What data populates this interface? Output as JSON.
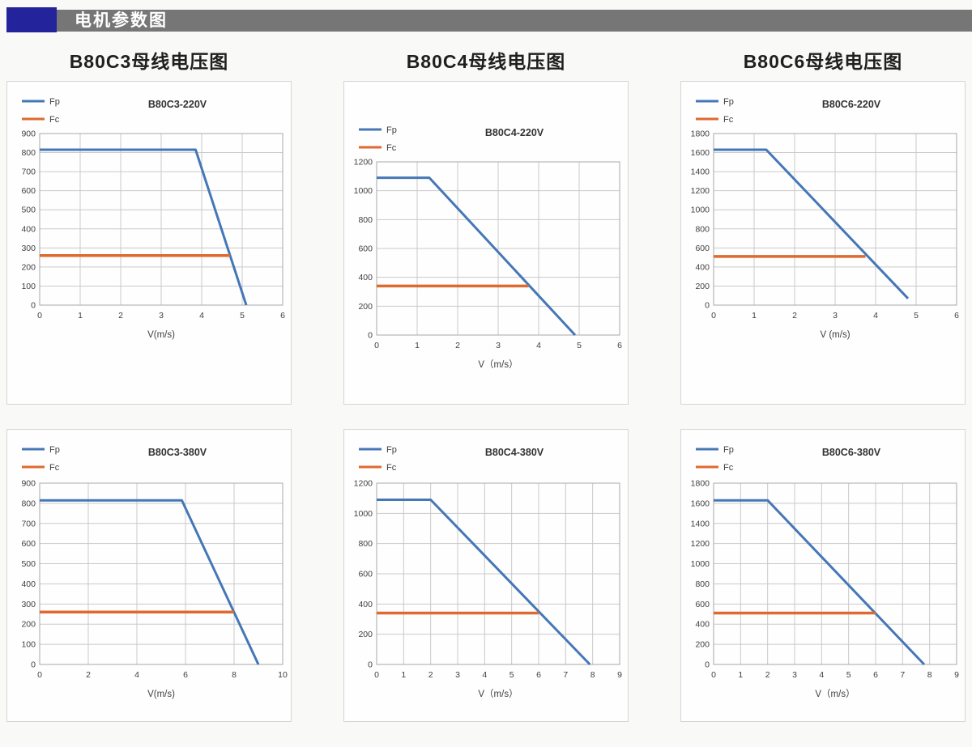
{
  "header": {
    "title": "电机参数图",
    "accent_color": "#23239b",
    "bar_color": "#767676",
    "text_color": "#ffffff"
  },
  "section_titles": [
    "B80C3母线电压图",
    "B80C4母线电压图",
    "B80C6母线电压图"
  ],
  "colors": {
    "fp": "#4577b7",
    "fc": "#dd6a2f",
    "grid": "#c9c9c9",
    "plot_border": "#a8a8a8",
    "tick_text": "#404040",
    "title_text": "#333333",
    "panel_border": "#d6d6d3",
    "panel_bg": "#fefefe",
    "page_bg": "#f9f9f7"
  },
  "chart_data": [
    {
      "type": "line",
      "title": "B80C3-220V",
      "xlabel": "V(m/s)",
      "xlim": [
        0,
        6
      ],
      "xticks": [
        0,
        1,
        2,
        3,
        4,
        5,
        6
      ],
      "ylim": [
        0,
        900
      ],
      "yticks": [
        0,
        100,
        200,
        300,
        400,
        500,
        600,
        700,
        800,
        900
      ],
      "grid": true,
      "legend_position": "top-left",
      "series": [
        {
          "name": "Fp",
          "color": "#4577b7",
          "points": [
            [
              0,
              815
            ],
            [
              3.85,
              815
            ],
            [
              5.1,
              0
            ]
          ]
        },
        {
          "name": "Fc",
          "color": "#dd6a2f",
          "points": [
            [
              0,
              260
            ],
            [
              4.7,
              260
            ]
          ]
        }
      ]
    },
    {
      "type": "line",
      "title": "B80C4-220V",
      "xlabel": "V（m/s）",
      "xlim": [
        0,
        6
      ],
      "xticks": [
        0,
        1,
        2,
        3,
        4,
        5,
        6
      ],
      "ylim": [
        0,
        1200
      ],
      "yticks": [
        0,
        200,
        400,
        600,
        800,
        1000,
        1200
      ],
      "grid": true,
      "legend_position": "top-left",
      "series": [
        {
          "name": "Fp",
          "color": "#4577b7",
          "points": [
            [
              0,
              1090
            ],
            [
              1.3,
              1090
            ],
            [
              4.9,
              0
            ]
          ]
        },
        {
          "name": "Fc",
          "color": "#dd6a2f",
          "points": [
            [
              0,
              340
            ],
            [
              3.75,
              340
            ]
          ]
        }
      ]
    },
    {
      "type": "line",
      "title": "B80C6-220V",
      "xlabel": "V (m/s)",
      "xlim": [
        0,
        6
      ],
      "xticks": [
        0,
        1,
        2,
        3,
        4,
        5,
        6
      ],
      "ylim": [
        0,
        1800
      ],
      "yticks": [
        0,
        200,
        400,
        600,
        800,
        1000,
        1200,
        1400,
        1600,
        1800
      ],
      "grid": true,
      "legend_position": "top-left",
      "series": [
        {
          "name": "Fp",
          "color": "#4577b7",
          "points": [
            [
              0,
              1630
            ],
            [
              1.3,
              1630
            ],
            [
              4.8,
              70
            ]
          ]
        },
        {
          "name": "Fc",
          "color": "#dd6a2f",
          "points": [
            [
              0,
              510
            ],
            [
              3.75,
              510
            ]
          ]
        }
      ]
    },
    {
      "type": "line",
      "title": "B80C3-380V",
      "xlabel": "V(m/s)",
      "xlim": [
        0,
        10
      ],
      "xticks": [
        0,
        2,
        4,
        6,
        8,
        10
      ],
      "ylim": [
        0,
        900
      ],
      "yticks": [
        0,
        100,
        200,
        300,
        400,
        500,
        600,
        700,
        800,
        900
      ],
      "grid": true,
      "legend_position": "top-left",
      "series": [
        {
          "name": "Fp",
          "color": "#4577b7",
          "points": [
            [
              0,
              815
            ],
            [
              5.85,
              815
            ],
            [
              9,
              0
            ]
          ]
        },
        {
          "name": "Fc",
          "color": "#dd6a2f",
          "points": [
            [
              0,
              260
            ],
            [
              8,
              260
            ]
          ]
        }
      ]
    },
    {
      "type": "line",
      "title": "B80C4-380V",
      "xlabel": "V（m/s）",
      "xlim": [
        0,
        9
      ],
      "xticks": [
        0,
        1,
        2,
        3,
        4,
        5,
        6,
        7,
        8,
        9
      ],
      "ylim": [
        0,
        1200
      ],
      "yticks": [
        0,
        200,
        400,
        600,
        800,
        1000,
        1200
      ],
      "grid": true,
      "legend_position": "top-left",
      "series": [
        {
          "name": "Fp",
          "color": "#4577b7",
          "points": [
            [
              0,
              1090
            ],
            [
              2,
              1090
            ],
            [
              7.9,
              0
            ]
          ]
        },
        {
          "name": "Fc",
          "color": "#dd6a2f",
          "points": [
            [
              0,
              340
            ],
            [
              6,
              340
            ]
          ]
        }
      ]
    },
    {
      "type": "line",
      "title": "B80C6-380V",
      "xlabel": "V（m/s）",
      "xlim": [
        0,
        9
      ],
      "xticks": [
        0,
        1,
        2,
        3,
        4,
        5,
        6,
        7,
        8,
        9
      ],
      "ylim": [
        0,
        1800
      ],
      "yticks": [
        0,
        200,
        400,
        600,
        800,
        1000,
        1200,
        1400,
        1600,
        1800
      ],
      "grid": true,
      "legend_position": "top-left",
      "series": [
        {
          "name": "Fp",
          "color": "#4577b7",
          "points": [
            [
              0,
              1630
            ],
            [
              2,
              1630
            ],
            [
              7.8,
              0
            ]
          ]
        },
        {
          "name": "Fc",
          "color": "#dd6a2f",
          "points": [
            [
              0,
              510
            ],
            [
              6,
              510
            ]
          ]
        }
      ]
    }
  ]
}
